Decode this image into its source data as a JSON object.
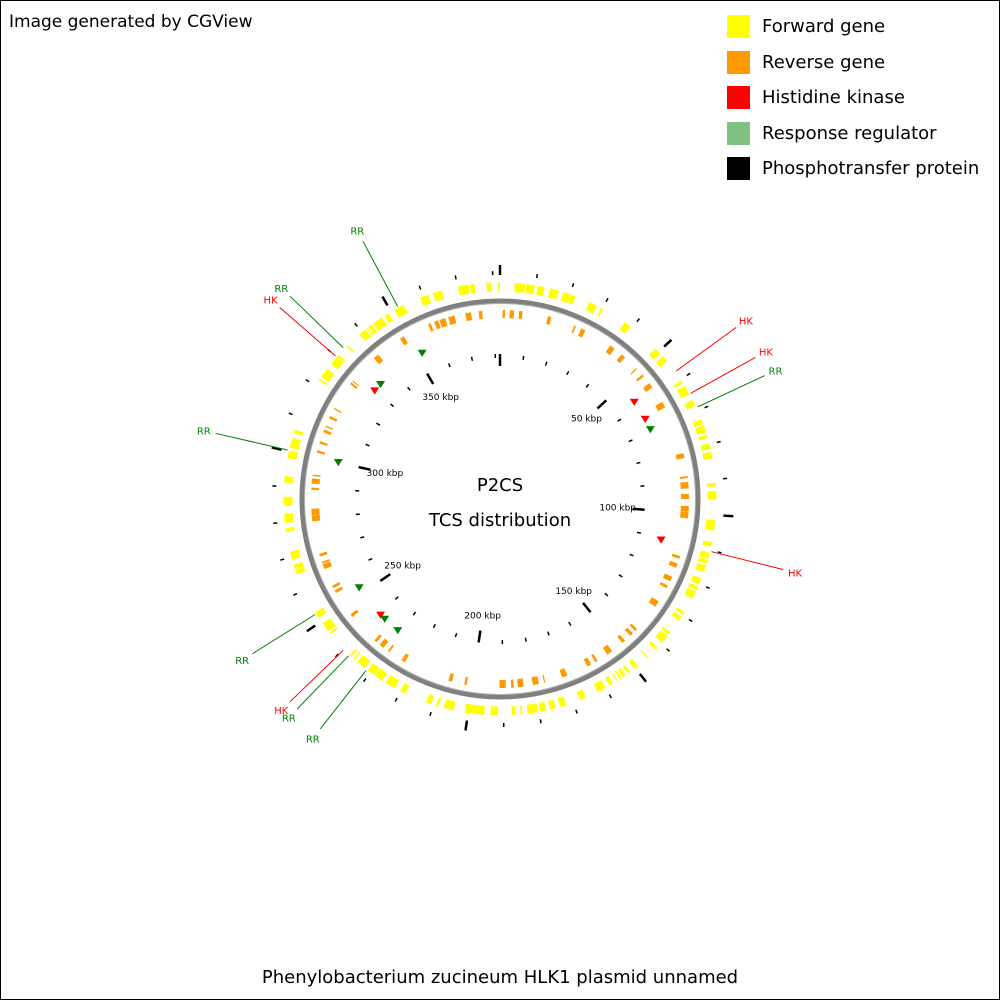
{
  "credit": "Image generated by CGView",
  "center": {
    "title": "P2CS",
    "subtitle": "TCS distribution"
  },
  "footer": "Phenylobacterium zucineum HLK1 plasmid unnamed",
  "legend": [
    {
      "label": "Forward gene",
      "color": "#ffff00"
    },
    {
      "label": "Reverse gene",
      "color": "#ff9900"
    },
    {
      "label": "Histidine kinase",
      "color": "#ff0000"
    },
    {
      "label": "Response regulator",
      "color": "#80c080"
    },
    {
      "label": "Phosphotransfer protein",
      "color": "#000000"
    }
  ],
  "plasmid": {
    "ticks": [
      {
        "position_kbp": 50,
        "label": "50 kbp"
      },
      {
        "position_kbp": 100,
        "label": "100 kbp"
      },
      {
        "position_kbp": 150,
        "label": "150 kbp"
      },
      {
        "position_kbp": 200,
        "label": "200 kbp"
      },
      {
        "position_kbp": 250,
        "label": "250 kbp"
      },
      {
        "position_kbp": 300,
        "label": "300 kbp"
      },
      {
        "position_kbp": 350,
        "label": "350 kbp"
      }
    ],
    "tcs_genes": [
      {
        "type": "HK",
        "label": "HK",
        "color": "#ff0000",
        "angle_deg": 54
      },
      {
        "type": "HK",
        "label": "HK",
        "color": "#ff0000",
        "angle_deg": 61
      },
      {
        "type": "RR",
        "label": "RR",
        "color": "#008000",
        "angle_deg": 65
      },
      {
        "type": "HK",
        "label": "HK",
        "color": "#ff0000",
        "angle_deg": 104
      },
      {
        "type": "RR",
        "label": "RR",
        "color": "#008000",
        "angle_deg": 218
      },
      {
        "type": "RR",
        "label": "RR",
        "color": "#008000",
        "angle_deg": 224
      },
      {
        "type": "HK",
        "label": "HK",
        "color": "#ff0000",
        "angle_deg": 226
      },
      {
        "type": "RR",
        "label": "RR",
        "color": "#008000",
        "angle_deg": 238
      },
      {
        "type": "RR",
        "label": "RR",
        "color": "#008000",
        "angle_deg": 283
      },
      {
        "type": "HK",
        "label": "HK",
        "color": "#ff0000",
        "angle_deg": 311
      },
      {
        "type": "RR",
        "label": "RR",
        "color": "#008000",
        "angle_deg": 314
      },
      {
        "type": "RR",
        "label": "RR",
        "color": "#008000",
        "angle_deg": 332
      }
    ]
  }
}
